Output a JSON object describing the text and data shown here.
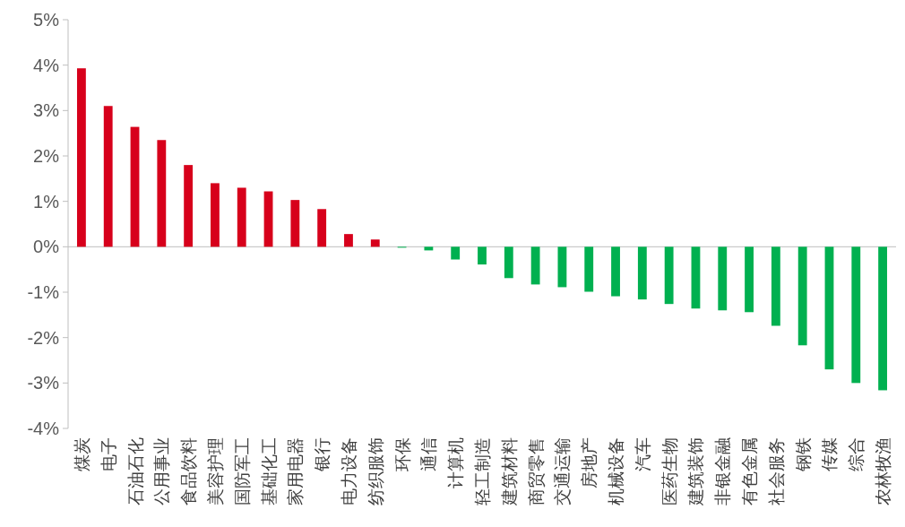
{
  "chart_data": {
    "type": "bar",
    "categories": [
      "煤炭",
      "电子",
      "石油石化",
      "公用事业",
      "食品饮料",
      "美容护理",
      "国防军工",
      "基础化工",
      "家用电器",
      "银行",
      "电力设备",
      "纺织服饰",
      "环保",
      "通信",
      "计算机",
      "轻工制造",
      "建筑材料",
      "商贸零售",
      "交通运输",
      "房地产",
      "机械设备",
      "汽车",
      "医药生物",
      "建筑装饰",
      "非银金融",
      "有色金属",
      "社会服务",
      "钢铁",
      "传媒",
      "综合",
      "农林牧渔"
    ],
    "values": [
      3.93,
      3.1,
      2.64,
      2.35,
      1.8,
      1.4,
      1.3,
      1.22,
      1.03,
      0.83,
      0.28,
      0.16,
      -0.02,
      -0.08,
      -0.28,
      -0.39,
      -0.69,
      -0.83,
      -0.89,
      -0.99,
      -1.09,
      -1.16,
      -1.26,
      -1.36,
      -1.4,
      -1.44,
      -1.74,
      -2.17,
      -2.7,
      -3.0,
      -3.16
    ],
    "colors": [
      "#d7001b",
      "#d7001b",
      "#d7001b",
      "#d7001b",
      "#d7001b",
      "#d7001b",
      "#d7001b",
      "#d7001b",
      "#d7001b",
      "#d7001b",
      "#d7001b",
      "#d7001b",
      "#00b050",
      "#00b050",
      "#00b050",
      "#00b050",
      "#00b050",
      "#00b050",
      "#00b050",
      "#00b050",
      "#00b050",
      "#00b050",
      "#00b050",
      "#00b050",
      "#00b050",
      "#00b050",
      "#00b050",
      "#00b050",
      "#00b050",
      "#00b050",
      "#00b050"
    ],
    "ylim": [
      -4,
      5
    ],
    "yticks": [
      {
        "value": -4,
        "label": "-4%"
      },
      {
        "value": -3,
        "label": "-3%"
      },
      {
        "value": -2,
        "label": "-2%"
      },
      {
        "value": -1,
        "label": "-1%"
      },
      {
        "value": 0,
        "label": "0%"
      },
      {
        "value": 1,
        "label": "1%"
      },
      {
        "value": 2,
        "label": "2%"
      },
      {
        "value": 3,
        "label": "3%"
      },
      {
        "value": 4,
        "label": "4%"
      },
      {
        "value": 5,
        "label": "5%"
      }
    ],
    "orientation": "vertical"
  }
}
